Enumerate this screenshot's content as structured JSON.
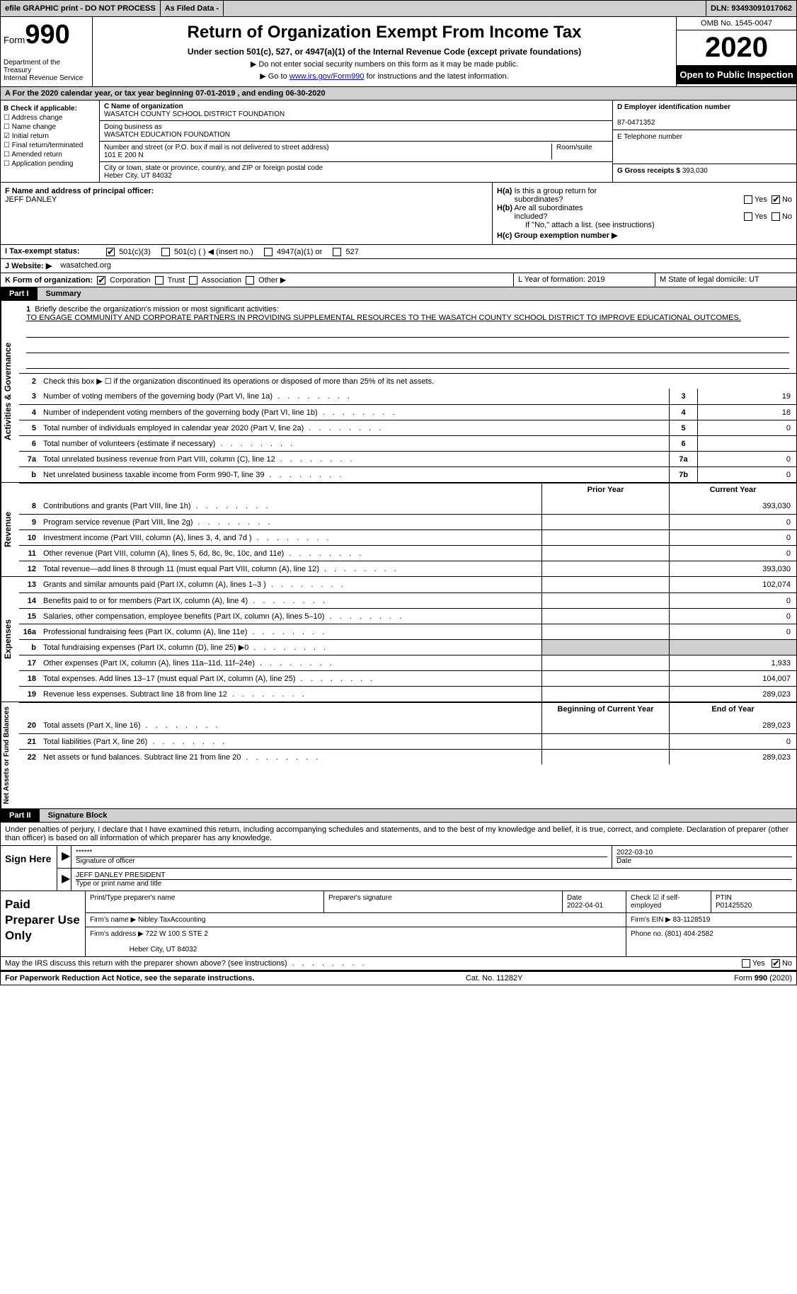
{
  "topbar": {
    "efile": "efile GRAPHIC print - DO NOT PROCESS",
    "asfiled": "As Filed Data -",
    "dln_label": "DLN:",
    "dln": "93493091017062"
  },
  "header": {
    "form_word": "Form",
    "form_num": "990",
    "dept": "Department of the Treasury\nInternal Revenue Service",
    "title": "Return of Organization Exempt From Income Tax",
    "sub": "Under section 501(c), 527, or 4947(a)(1) of the Internal Revenue Code (except private foundations)",
    "sub2a": "▶ Do not enter social security numbers on this form as it may be made public.",
    "sub2b_pre": "▶ Go to ",
    "sub2b_link": "www.irs.gov/Form990",
    "sub2b_post": " for instructions and the latest information.",
    "omb": "OMB No. 1545-0047",
    "year": "2020",
    "inspection": "Open to Public Inspection"
  },
  "rowA": "A   For the 2020 calendar year, or tax year beginning 07-01-2019   , and ending 06-30-2020",
  "sectionB": {
    "hdr": "B Check if applicable:",
    "items": [
      "Address change",
      "Name change",
      "Initial return",
      "Final return/terminated",
      "Amended return",
      "Application pending"
    ],
    "checked_idx": 2
  },
  "sectionC": {
    "name_label": "C Name of organization",
    "name": "WASATCH COUNTY SCHOOL DISTRICT FOUNDATION",
    "dba_label": "Doing business as",
    "dba": "WASATCH EDUCATION FOUNDATION",
    "addr_label": "Number and street (or P.O. box if mail is not delivered to street address)",
    "room_label": "Room/suite",
    "addr": "101 E 200 N",
    "city_label": "City or town, state or province, country, and ZIP or foreign postal code",
    "city": "Heber City, UT  84032"
  },
  "sectionD": {
    "label": "D Employer identification number",
    "ein": "87-0471352",
    "tel_label": "E Telephone number",
    "tel": "",
    "gross_label": "G Gross receipts $",
    "gross": "393,030"
  },
  "sectionF": {
    "label": "F  Name and address of principal officer:",
    "name": "JEFF DANLEY"
  },
  "sectionH": {
    "a": "H(a)  Is this a group return for subordinates?",
    "a_yes": "Yes",
    "a_no": "No",
    "b": "H(b)  Are all subordinates included?",
    "b_note": "If \"No,\" attach a list. (see instructions)",
    "c": "H(c)  Group exemption number ▶"
  },
  "rowI": {
    "label": "I  Tax-exempt status:",
    "opts": [
      "501(c)(3)",
      "501(c) (   ) ◀ (insert no.)",
      "4947(a)(1) or",
      "527"
    ]
  },
  "rowJ": {
    "label": "J  Website: ▶",
    "val": "wasatched.org"
  },
  "rowK": {
    "label": "K Form of organization:",
    "opts": [
      "Corporation",
      "Trust",
      "Association",
      "Other ▶"
    ]
  },
  "rowLM": {
    "l": "L Year of formation: 2019",
    "m": "M State of legal domicile: UT"
  },
  "partI": {
    "black": "Part I",
    "grey": "Summary"
  },
  "mission": {
    "line1_label": "1  Briefly describe the organization's mission or most significant activities:",
    "text": "TO ENGAGE COMMUNITY AND CORPORATE PARTNERS IN PROVIDING SUPPLEMENTAL RESOURCES TO THE WASATCH COUNTY SCHOOL DISTRICT TO IMPROVE EDUCATIONAL OUTCOMES."
  },
  "gov_lines": {
    "line2": "Check this box ▶ ☐ if the organization discontinued its operations or disposed of more than 25% of its net assets.",
    "rows": [
      {
        "n": "3",
        "label": "Number of voting members of the governing body (Part VI, line 1a)",
        "cell": "3",
        "val": "19"
      },
      {
        "n": "4",
        "label": "Number of independent voting members of the governing body (Part VI, line 1b)",
        "cell": "4",
        "val": "18"
      },
      {
        "n": "5",
        "label": "Total number of individuals employed in calendar year 2020 (Part V, line 2a)",
        "cell": "5",
        "val": "0"
      },
      {
        "n": "6",
        "label": "Total number of volunteers (estimate if necessary)",
        "cell": "6",
        "val": ""
      },
      {
        "n": "7a",
        "label": "Total unrelated business revenue from Part VIII, column (C), line 12",
        "cell": "7a",
        "val": "0"
      },
      {
        "n": "b",
        "label": "Net unrelated business taxable income from Form 990-T, line 39",
        "cell": "7b",
        "val": "0"
      }
    ]
  },
  "year_hdrs": {
    "prior": "Prior Year",
    "current": "Current Year"
  },
  "revenue": {
    "label": "Revenue",
    "rows": [
      {
        "n": "8",
        "label": "Contributions and grants (Part VIII, line 1h)",
        "prior": "",
        "cur": "393,030"
      },
      {
        "n": "9",
        "label": "Program service revenue (Part VIII, line 2g)",
        "prior": "",
        "cur": "0"
      },
      {
        "n": "10",
        "label": "Investment income (Part VIII, column (A), lines 3, 4, and 7d )",
        "prior": "",
        "cur": "0"
      },
      {
        "n": "11",
        "label": "Other revenue (Part VIII, column (A), lines 5, 6d, 8c, 9c, 10c, and 11e)",
        "prior": "",
        "cur": "0"
      },
      {
        "n": "12",
        "label": "Total revenue—add lines 8 through 11 (must equal Part VIII, column (A), line 12)",
        "prior": "",
        "cur": "393,030"
      }
    ]
  },
  "expenses": {
    "label": "Expenses",
    "rows": [
      {
        "n": "13",
        "label": "Grants and similar amounts paid (Part IX, column (A), lines 1–3 )",
        "prior": "",
        "cur": "102,074"
      },
      {
        "n": "14",
        "label": "Benefits paid to or for members (Part IX, column (A), line 4)",
        "prior": "",
        "cur": "0"
      },
      {
        "n": "15",
        "label": "Salaries, other compensation, employee benefits (Part IX, column (A), lines 5–10)",
        "prior": "",
        "cur": "0"
      },
      {
        "n": "16a",
        "label": "Professional fundraising fees (Part IX, column (A), line 11e)",
        "prior": "",
        "cur": "0"
      },
      {
        "n": "b",
        "label": "Total fundraising expenses (Part IX, column (D), line 25) ▶0",
        "prior": "grey",
        "cur": "grey"
      },
      {
        "n": "17",
        "label": "Other expenses (Part IX, column (A), lines 11a–11d, 11f–24e)",
        "prior": "",
        "cur": "1,933"
      },
      {
        "n": "18",
        "label": "Total expenses. Add lines 13–17 (must equal Part IX, column (A), line 25)",
        "prior": "",
        "cur": "104,007"
      },
      {
        "n": "19",
        "label": "Revenue less expenses. Subtract line 18 from line 12",
        "prior": "",
        "cur": "289,023"
      }
    ]
  },
  "netassets": {
    "label": "Net Assets or Fund Balances",
    "hdr_begin": "Beginning of Current Year",
    "hdr_end": "End of Year",
    "rows": [
      {
        "n": "20",
        "label": "Total assets (Part X, line 16)",
        "prior": "",
        "cur": "289,023"
      },
      {
        "n": "21",
        "label": "Total liabilities (Part X, line 26)",
        "prior": "",
        "cur": "0"
      },
      {
        "n": "22",
        "label": "Net assets or fund balances. Subtract line 21 from line 20",
        "prior": "",
        "cur": "289,023"
      }
    ]
  },
  "partII": {
    "black": "Part II",
    "grey": "Signature Block"
  },
  "decl": "Under penalties of perjury, I declare that I have examined this return, including accompanying schedules and statements, and to the best of my knowledge and belief, it is true, correct, and complete. Declaration of preparer (other than officer) is based on all information of which preparer has any knowledge.",
  "sign": {
    "here": "Sign Here",
    "sig_stars": "******",
    "sig_label": "Signature of officer",
    "date": "2022-03-10",
    "date_label": "Date",
    "name": "JEFF DANLEY  PRESIDENT",
    "name_label": "Type or print name and title"
  },
  "prep": {
    "here": "Paid Preparer Use Only",
    "r1": {
      "c1": "Print/Type preparer's name",
      "c2": "Preparer's signature",
      "c3l": "Date",
      "c3v": "2022-04-01",
      "c4": "Check ☑ if self-employed",
      "c5l": "PTIN",
      "c5v": "P01425520"
    },
    "r2": {
      "firm_label": "Firm's name    ▶",
      "firm": "Nibley TaxAccounting",
      "ein_label": "Firm's EIN ▶",
      "ein": "83-1128519"
    },
    "r3": {
      "addr_label": "Firm's address ▶",
      "addr1": "722 W 100 S STE 2",
      "addr2": "Heber City, UT  84032",
      "phone_label": "Phone no.",
      "phone": "(801) 404-2582"
    }
  },
  "footer": {
    "q": "May the IRS discuss this return with the preparer shown above? (see instructions)",
    "yes": "Yes",
    "no": "No",
    "paperwork": "For Paperwork Reduction Act Notice, see the separate instructions.",
    "cat": "Cat. No. 11282Y",
    "form": "Form 990 (2020)"
  }
}
